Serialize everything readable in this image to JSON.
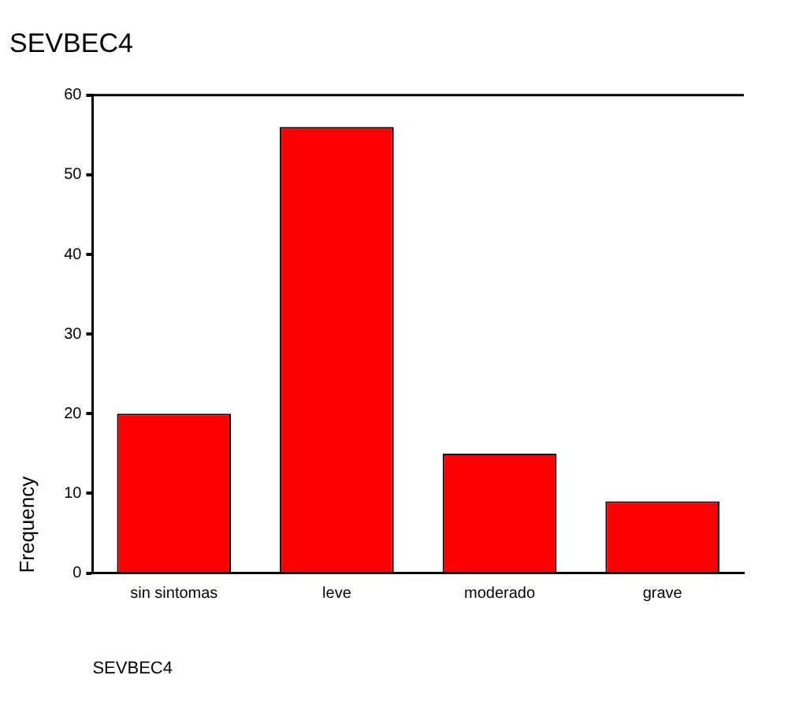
{
  "chart_data": {
    "type": "bar",
    "title": "SEVBEC4",
    "xlabel": "SEVBEC4",
    "ylabel": "Frequency",
    "categories": [
      "sin sintomas",
      "leve",
      "moderado",
      "grave"
    ],
    "values": [
      20,
      56,
      15,
      9
    ],
    "color": "#ff0000",
    "ylim": [
      0,
      60
    ],
    "yticks": [
      0,
      10,
      20,
      30,
      40,
      50,
      60
    ],
    "grid": false,
    "legend": false
  }
}
